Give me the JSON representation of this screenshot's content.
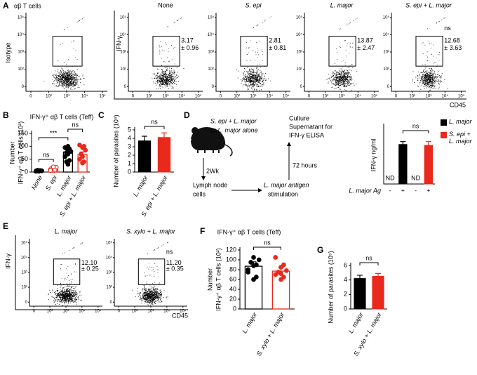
{
  "panel_labels": [
    "A",
    "B",
    "C",
    "D",
    "E",
    "F",
    "G"
  ],
  "flow_axis_ticks": [
    "0",
    "10²",
    "10³",
    "10⁴",
    "10⁵"
  ],
  "panel_a": {
    "title": "αβ T cells",
    "isotype_y_label": "Isotype",
    "y_label": "IFN-γ",
    "x_label": "CD45",
    "plots": [
      {
        "title": "None",
        "stat": "3.17",
        "sd": "± 0.96"
      },
      {
        "title": "S. epi",
        "stat": "2.81",
        "sd": "± 0.81"
      },
      {
        "title": "L. major",
        "stat": "13.87",
        "sd": "± 2.47"
      },
      {
        "title": "S. epi + L. major",
        "significance": "ns",
        "stat": "12.68",
        "sd": "± 3.63"
      }
    ]
  },
  "panel_d_diagram": {
    "infection": [
      "S. epi + L. major",
      "or L. major alone"
    ],
    "duration": "2Wk",
    "source": [
      "Lymph node",
      "cells"
    ],
    "stimulation": [
      "L. major antigen",
      "stimulation"
    ],
    "incubation": "72 hours",
    "readout": [
      "Culture",
      "Supernatant for",
      "IFN-γ ELISA"
    ]
  },
  "panel_e": {
    "y_label": "IFN-γ",
    "x_label": "CD45",
    "plots": [
      {
        "title": "L. major",
        "stat": "12.10",
        "sd": "± 0.25"
      },
      {
        "title": "S. xylo + L. major",
        "significance": "ns",
        "stat": "11.20",
        "sd": "± 0.35"
      }
    ]
  },
  "chart_data": [
    {
      "type": "bar",
      "title": "IFN-γ⁺ αβ T cells (Teff)",
      "y_label": [
        "Number",
        "IFN-γ⁺ αβ T cells (10²)"
      ],
      "categories": [
        "None",
        "S. epi",
        "L. major",
        "S. epi + L. major"
      ],
      "values": [
        5,
        10,
        78,
        68
      ],
      "errors": [
        1,
        2.5,
        8,
        10
      ],
      "points": [
        [
          3,
          5,
          4,
          6,
          7,
          5,
          4,
          6,
          3,
          5
        ],
        [
          5,
          8,
          10,
          12,
          15,
          18,
          20,
          8,
          6
        ],
        [
          30,
          45,
          60,
          70,
          75,
          80,
          85,
          90,
          95,
          100,
          40
        ],
        [
          35,
          40,
          50,
          60,
          70,
          85,
          95,
          100,
          105
        ]
      ],
      "colors": [
        "#000000",
        "#e8291c",
        "#000000",
        "#e8291c"
      ],
      "bar_style": "outline",
      "point_styles": [
        "filled",
        "open",
        "filled",
        "filled"
      ],
      "ylim": [
        0,
        150
      ],
      "yticks": [
        0,
        50,
        100,
        150
      ],
      "annotations": [
        "***",
        "ns",
        "ns"
      ]
    },
    {
      "type": "bar",
      "y_label": [
        "Number of parasites (10⁵)"
      ],
      "categories": [
        "L. major",
        "S. epi + L. major"
      ],
      "values": [
        3.7,
        4.1
      ],
      "errors": [
        0.55,
        0.55
      ],
      "colors": [
        "#000000",
        "#e8291c"
      ],
      "bar_style": "solid",
      "ylim": [
        0,
        5
      ],
      "yticks": [
        0,
        1,
        2,
        3,
        4,
        5
      ],
      "annotations": [
        "ns"
      ]
    },
    {
      "type": "bar",
      "y_label": [
        "IFN-γ ng/ml"
      ],
      "x_label": "L. major Ag",
      "categories": [
        "-",
        "+",
        "-",
        "+"
      ],
      "values": [
        null,
        4.8,
        null,
        4.7
      ],
      "value_labels": [
        "ND",
        null,
        "ND",
        null
      ],
      "errors": [
        null,
        0.35,
        null,
        0.45
      ],
      "colors": [
        "#000000",
        "#000000",
        "#e8291c",
        "#e8291c"
      ],
      "bar_style": "solid",
      "ylim": [
        0,
        7
      ],
      "annotations": [
        "ns"
      ],
      "legend": [
        {
          "name": "L. major",
          "color": "#000000"
        },
        {
          "name": "S. epi + L. major",
          "color": "#e8291c"
        }
      ]
    },
    {
      "type": "bar",
      "title": "IFN-γ⁺ αβ T cells (Teff)",
      "y_label": [
        "Number",
        "IFN-γ⁺ αβ T cells (10²)"
      ],
      "categories": [
        "L. major",
        "S. xylo + L. major"
      ],
      "values": [
        87,
        77
      ],
      "errors": [
        9,
        7
      ],
      "points": [
        [
          60,
          65,
          80,
          88,
          95,
          100,
          105,
          90,
          75
        ],
        [
          60,
          65,
          70,
          72,
          75,
          78,
          85,
          90,
          105
        ]
      ],
      "colors": [
        "#000000",
        "#e8291c"
      ],
      "bar_style": "outline",
      "point_styles": [
        "filled",
        "filled"
      ],
      "ylim": [
        0,
        120
      ],
      "yticks": [
        0,
        20,
        40,
        60,
        80,
        100,
        120
      ],
      "annotations": [
        "ns"
      ]
    },
    {
      "type": "bar",
      "y_label": [
        "Number of parasites (10⁵)"
      ],
      "categories": [
        "L. major",
        "S. xylo + L. major"
      ],
      "values": [
        4.2,
        4.5
      ],
      "errors": [
        0.45,
        0.4
      ],
      "colors": [
        "#000000",
        "#e8291c"
      ],
      "bar_style": "solid",
      "ylim": [
        0,
        6
      ],
      "yticks": [
        0,
        2,
        4,
        6
      ],
      "annotations": [
        "ns"
      ]
    }
  ]
}
